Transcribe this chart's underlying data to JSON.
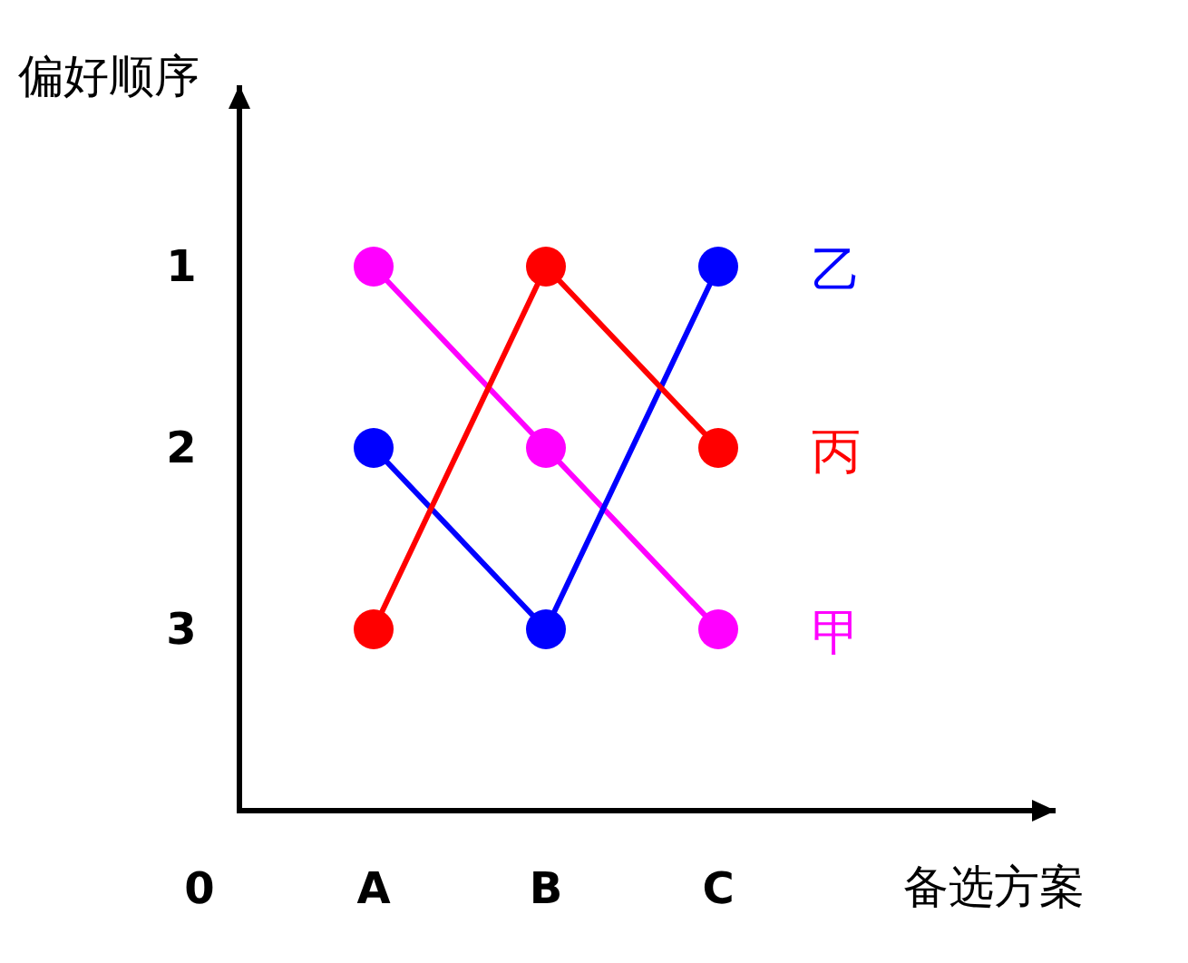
{
  "chart_data": {
    "type": "line",
    "ylabel": "偏好顺序",
    "xlabel": "备选方案",
    "annotations": [
      "0"
    ],
    "categories": [
      "A",
      "B",
      "C"
    ],
    "series": [
      {
        "name": "甲",
        "color": "#ff00ff",
        "values": [
          1,
          2,
          3
        ]
      },
      {
        "name": "乙",
        "color": "#0000ff",
        "values": [
          2,
          3,
          1
        ]
      },
      {
        "name": "丙",
        "color": "#ff0000",
        "values": [
          3,
          1,
          2
        ]
      }
    ],
    "ylim": [
      4,
      0
    ],
    "yticks": [
      1,
      2,
      3
    ],
    "marker": "circle",
    "line_style": "solid",
    "legend": "right"
  }
}
